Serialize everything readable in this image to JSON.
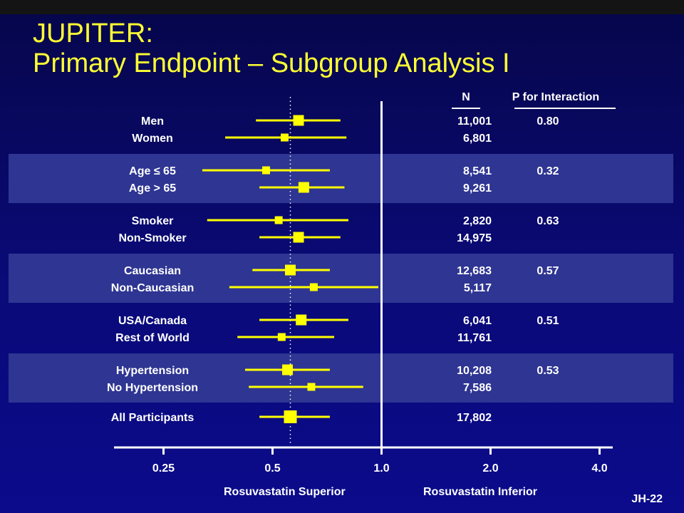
{
  "slide": {
    "title_line1": "JUPITER:",
    "title_line2": "Primary Endpoint – Subgroup Analysis I",
    "slide_id": "JH-22"
  },
  "colors": {
    "title": "#ffff33",
    "marker": "#ffff00",
    "band": "#2e3592",
    "text": "#ffffff"
  },
  "chart_data": {
    "type": "forest",
    "x_scale": "log",
    "x_ticks": [
      "0.25",
      "0.5",
      "1.0",
      "2.0",
      "4.0"
    ],
    "x_tick_values": [
      0.25,
      0.5,
      1.0,
      2.0,
      4.0
    ],
    "xlim": [
      0.1825,
      4.35
    ],
    "reference_line": 1.0,
    "overall_estimate_line": 0.56,
    "left_label": "Rosuvastatin Superior",
    "right_label": "Rosuvastatin Inferior",
    "column_headers": {
      "n": "N",
      "p": "P for Interaction"
    },
    "rows": [
      {
        "label": "Men",
        "n": "11,001",
        "p": "0.80",
        "hr": 0.59,
        "ci": [
          0.45,
          0.77
        ],
        "weight": "large",
        "band": false
      },
      {
        "label": "Women",
        "n": "6,801",
        "p": "",
        "hr": 0.54,
        "ci": [
          0.37,
          0.8
        ],
        "weight": "small",
        "band": false
      },
      {
        "label": "Age ≤ 65",
        "n": "8,541",
        "p": "0.32",
        "hr": 0.48,
        "ci": [
          0.32,
          0.72
        ],
        "weight": "small",
        "band": true
      },
      {
        "label": "Age > 65",
        "n": "9,261",
        "p": "",
        "hr": 0.61,
        "ci": [
          0.46,
          0.79
        ],
        "weight": "large",
        "band": true
      },
      {
        "label": "Smoker",
        "n": "2,820",
        "p": "0.63",
        "hr": 0.52,
        "ci": [
          0.33,
          0.81
        ],
        "weight": "small",
        "band": false
      },
      {
        "label": "Non-Smoker",
        "n": "14,975",
        "p": "",
        "hr": 0.59,
        "ci": [
          0.46,
          0.77
        ],
        "weight": "large",
        "band": false
      },
      {
        "label": "Caucasian",
        "n": "12,683",
        "p": "0.57",
        "hr": 0.56,
        "ci": [
          0.44,
          0.72
        ],
        "weight": "large",
        "band": true
      },
      {
        "label": "Non-Caucasian",
        "n": "5,117",
        "p": "",
        "hr": 0.65,
        "ci": [
          0.38,
          0.98
        ],
        "weight": "small",
        "band": true
      },
      {
        "label": "USA/Canada",
        "n": "6,041",
        "p": "0.51",
        "hr": 0.6,
        "ci": [
          0.46,
          0.81
        ],
        "weight": "large",
        "band": false
      },
      {
        "label": "Rest of World",
        "n": "11,761",
        "p": "",
        "hr": 0.53,
        "ci": [
          0.4,
          0.74
        ],
        "weight": "small",
        "band": false
      },
      {
        "label": "Hypertension",
        "n": "10,208",
        "p": "0.53",
        "hr": 0.55,
        "ci": [
          0.42,
          0.72
        ],
        "weight": "large",
        "band": true
      },
      {
        "label": "No Hypertension",
        "n": "7,586",
        "p": "",
        "hr": 0.64,
        "ci": [
          0.43,
          0.89
        ],
        "weight": "small",
        "band": true
      },
      {
        "label": "All Participants",
        "n": "17,802",
        "p": "",
        "hr": 0.56,
        "ci": [
          0.46,
          0.72
        ],
        "weight": "overall",
        "band": false
      }
    ]
  }
}
